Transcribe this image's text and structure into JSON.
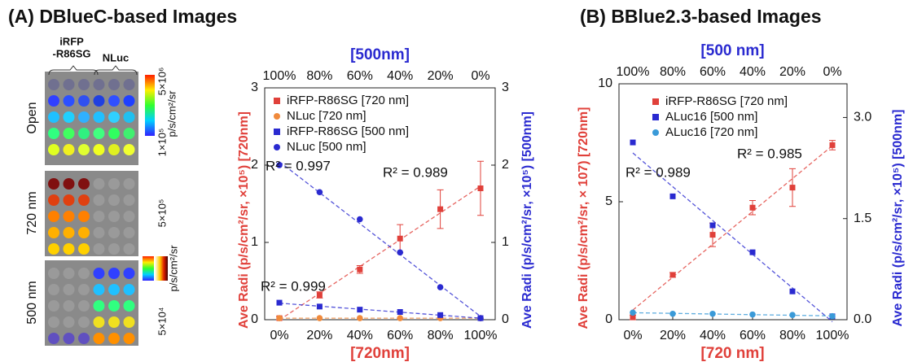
{
  "chart_data": [
    {
      "type": "scatter",
      "title": "(A) DBlueC-based Images",
      "xlabel": "[720nm]",
      "x2label": "[500nm]",
      "ylabel": "Ave Radi (p/s/cm²/sr, ×10⁵) [720nm]",
      "y2label": "Ave Radi (p/s/cm²/sr, ×10⁵) [500nm]",
      "categories": [
        "0%",
        "20%",
        "40%",
        "60%",
        "80%",
        "100%"
      ],
      "top_categories": [
        "100%",
        "80%",
        "60%",
        "40%",
        "20%",
        "0%"
      ],
      "ylim": [
        0,
        3
      ],
      "yticks": [
        0,
        1,
        2,
        3
      ],
      "y2lim": [
        0,
        3
      ],
      "y2ticks": [
        0,
        1,
        2,
        3
      ],
      "series": [
        {
          "name": "iRFP-R86SG [720 nm]",
          "color": "#e0403a",
          "marker": "square",
          "values": [
            0.02,
            0.32,
            0.65,
            1.05,
            1.43,
            1.7
          ],
          "errors": [
            0.02,
            0.04,
            0.05,
            0.18,
            0.25,
            0.35
          ]
        },
        {
          "name": "NLuc [720 nm]",
          "color": "#f08a3c",
          "marker": "circle",
          "values": [
            0.02,
            0.02,
            0.02,
            0.02,
            0.02,
            0.02
          ]
        },
        {
          "name": "iRFP-R86SG [500 nm]",
          "color": "#2a2ad0",
          "marker": "square",
          "axis": "y2",
          "values": [
            0.22,
            0.17,
            0.13,
            0.1,
            0.06,
            0.02
          ]
        },
        {
          "name": "NLuc [500 nm]",
          "color": "#2a2ad0",
          "marker": "circle",
          "axis": "y2",
          "values": [
            2.0,
            1.65,
            1.3,
            0.87,
            0.42,
            0.02
          ]
        }
      ],
      "annotations": [
        {
          "text": "R² = 0.997",
          "color": "#2a2ad0"
        },
        {
          "text": "R² = 0.989",
          "color": "#e0403a"
        },
        {
          "text": "R² = 0.999",
          "color": "#2a2ad0"
        }
      ]
    },
    {
      "type": "scatter",
      "title": "(B) BBlue2.3-based Images",
      "xlabel": "[720 nm]",
      "x2label": "[500 nm]",
      "ylabel": "Ave Radi (p/s/cm²/sr, × 107) [720nm]",
      "y2label": "Ave Radi (p/s/cm²/sr, ×10⁵) [500nm]",
      "categories": [
        "0%",
        "20%",
        "40%",
        "60%",
        "80%",
        "100%"
      ],
      "top_categories": [
        "100%",
        "80%",
        "60%",
        "40%",
        "20%",
        "0%"
      ],
      "ylim": [
        0,
        10
      ],
      "yticks": [
        0,
        5,
        10
      ],
      "y2lim": [
        0,
        3.5
      ],
      "y2ticks": [
        {
          "value": 0,
          "label": "0.0"
        },
        {
          "value": 1.5,
          "label": "1.5"
        },
        {
          "value": 3,
          "label": "3.0"
        }
      ],
      "series": [
        {
          "name": "iRFP-R86SG [720 nm]",
          "color": "#e0403a",
          "marker": "square",
          "values": [
            0.1,
            1.9,
            3.6,
            4.75,
            5.6,
            7.4
          ],
          "errors": [
            0.1,
            0.1,
            0.5,
            0.3,
            0.8,
            0.2
          ]
        },
        {
          "name": "ALuc16 [500 nm]",
          "color": "#2a2ad0",
          "marker": "square",
          "axis": "y2",
          "values": [
            2.63,
            1.83,
            1.4,
            1.0,
            0.42,
            0.05
          ]
        },
        {
          "name": "ALuc16 [720 nm]",
          "color": "#3a9ad8",
          "marker": "circle",
          "values": [
            0.3,
            0.25,
            0.25,
            0.22,
            0.2,
            0.15
          ]
        }
      ],
      "annotations": [
        {
          "text": "R² = 0.985",
          "color": "#e0403a"
        },
        {
          "text": "R² = 0.989",
          "color": "#2a2ad0"
        }
      ]
    }
  ],
  "image_panel": {
    "group_labels": [
      [
        "iRFP",
        "-R86SG"
      ],
      "NLuc"
    ],
    "row_labels": [
      "Open",
      "720 nm",
      "500 nm"
    ],
    "scale_labels": [
      "5×10⁶",
      "1×10⁵",
      "p/s/cm²/sr",
      "5×10⁵",
      "p/s/cm²/sr",
      "5×10⁴"
    ]
  }
}
